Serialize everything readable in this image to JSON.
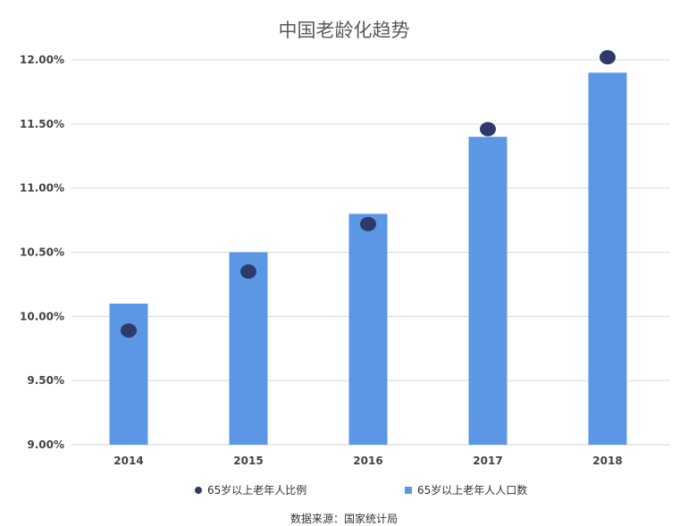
{
  "chart_data": {
    "type": "bar",
    "title": "中国老龄化趋势",
    "categories": [
      "2014",
      "2015",
      "2016",
      "2017",
      "2018"
    ],
    "series": [
      {
        "name": "65岁以上老年人人口数",
        "type": "bar",
        "values": [
          10.1,
          10.5,
          10.8,
          11.4,
          11.9
        ]
      },
      {
        "name": "65岁以上老年人比例",
        "type": "scatter",
        "values": [
          9.89,
          10.35,
          10.72,
          11.46,
          12.02
        ]
      }
    ],
    "y_ticks": [
      "12.00%",
      "11.50%",
      "11.00%",
      "10.50%",
      "10.00%",
      "9.50%",
      "9.00%"
    ],
    "ylim": [
      9.0,
      12.0
    ],
    "grid": true,
    "legend_position": "bottom",
    "colors": {
      "bar": "#5B97E5",
      "dot": "#2D3A6B",
      "grid": "#D9D9D9"
    }
  },
  "legend": {
    "dot_label": "65岁以上老年人比例",
    "bar_label": "65岁以上老年人人口数"
  },
  "source_note": "数据来源：国家统计局"
}
